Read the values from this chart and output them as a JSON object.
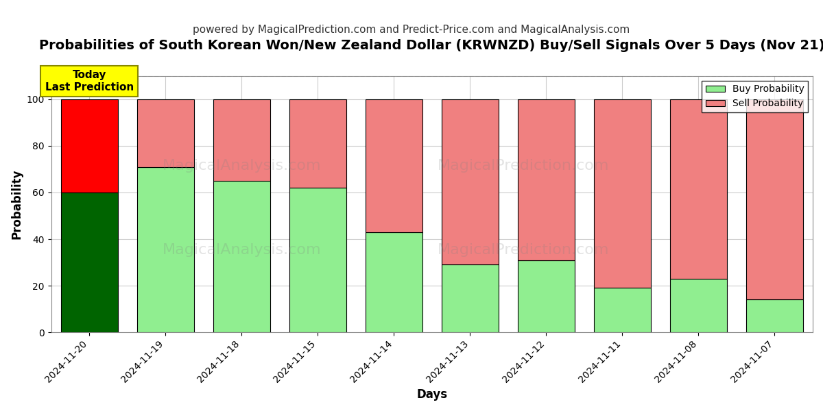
{
  "title": "Probabilities of South Korean Won/New Zealand Dollar (KRWNZD) Buy/Sell Signals Over 5 Days (Nov 21)",
  "subtitle": "powered by MagicalPrediction.com and Predict-Price.com and MagicalAnalysis.com",
  "xlabel": "Days",
  "ylabel": "Probability",
  "categories": [
    "2024-11-20",
    "2024-11-19",
    "2024-11-18",
    "2024-11-15",
    "2024-11-14",
    "2024-11-13",
    "2024-11-12",
    "2024-11-11",
    "2024-11-08",
    "2024-11-07"
  ],
  "buy_values": [
    60,
    71,
    65,
    62,
    43,
    29,
    31,
    19,
    23,
    14
  ],
  "sell_values": [
    40,
    29,
    35,
    38,
    57,
    71,
    69,
    81,
    77,
    86
  ],
  "buy_colors_normal": "#90EE90",
  "sell_colors_normal": "#F08080",
  "buy_color_today": "#006400",
  "sell_color_today": "#FF0000",
  "bar_edge_color": "#000000",
  "ylim": [
    0,
    110
  ],
  "yticks": [
    0,
    20,
    40,
    60,
    80,
    100
  ],
  "dashed_line_y": 110,
  "annotation_text": "Today\nLast Prediction",
  "annotation_bg": "#FFFF00",
  "legend_buy_label": "Buy Probability",
  "legend_sell_label": "Sell Probability",
  "background_color": "#ffffff",
  "grid_color": "#cccccc",
  "title_fontsize": 14,
  "subtitle_fontsize": 11,
  "axis_label_fontsize": 12,
  "tick_fontsize": 10
}
